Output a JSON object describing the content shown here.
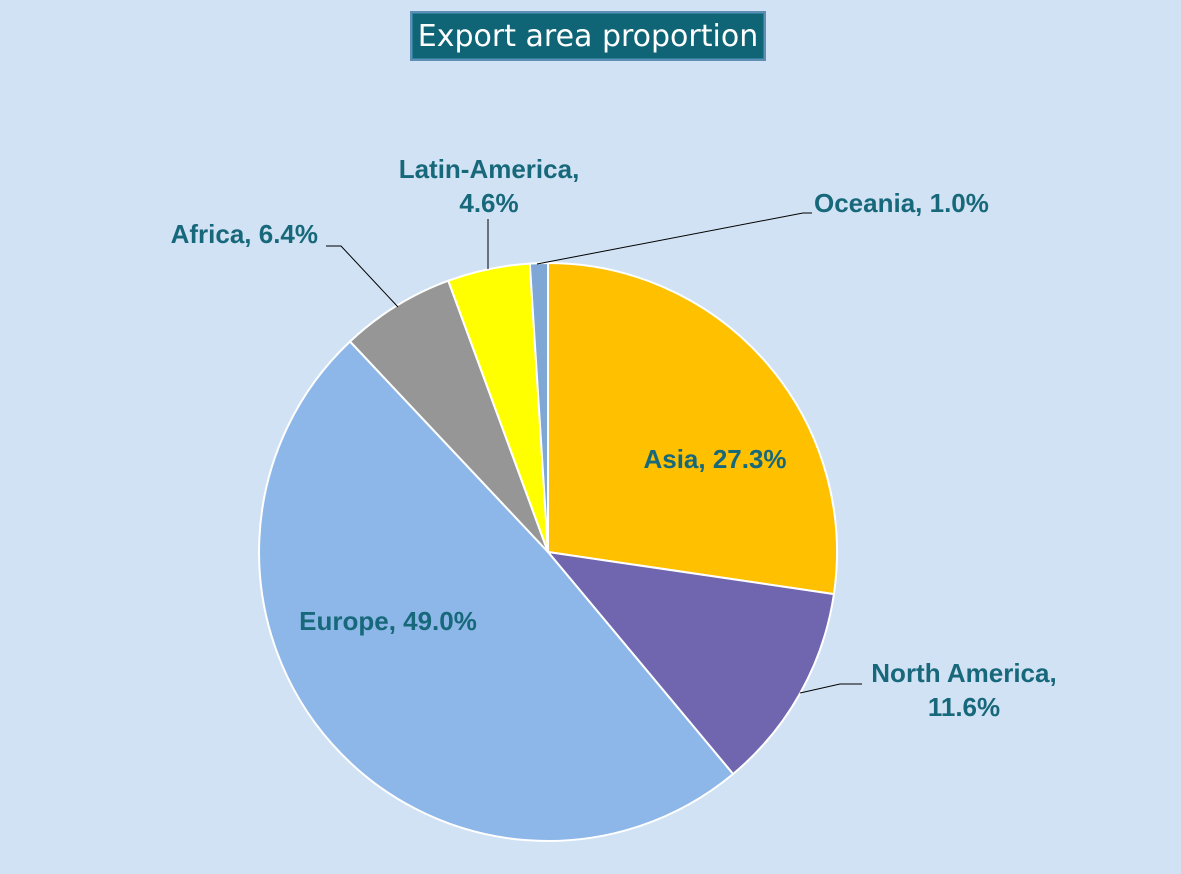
{
  "chart_data": {
    "type": "pie",
    "title": "Export area proportion",
    "slices": [
      {
        "label": "Asia",
        "value": 27.3,
        "display": "27.3%",
        "color": "#ffc000"
      },
      {
        "label": "North America",
        "value": 11.6,
        "display": "11.6%",
        "color": "#7066b0"
      },
      {
        "label": "Europe",
        "value": 49.0,
        "display": "49.0%",
        "color": "#8db7e8"
      },
      {
        "label": "Africa",
        "value": 6.4,
        "display": "6.4%",
        "color": "#969696"
      },
      {
        "label": "Latin-America",
        "value": 4.6,
        "display": "4.6%",
        "color": "#ffff00"
      },
      {
        "label": "Oceania",
        "value": 1.0,
        "display": "1.0%",
        "color": "#7fa7d6"
      }
    ],
    "start_angle": "12 o'clock",
    "direction": "clockwise",
    "legend": "none",
    "label_color": "#17687a",
    "background_color": "#d0e2f3",
    "title_box_color": "#0f6576"
  }
}
